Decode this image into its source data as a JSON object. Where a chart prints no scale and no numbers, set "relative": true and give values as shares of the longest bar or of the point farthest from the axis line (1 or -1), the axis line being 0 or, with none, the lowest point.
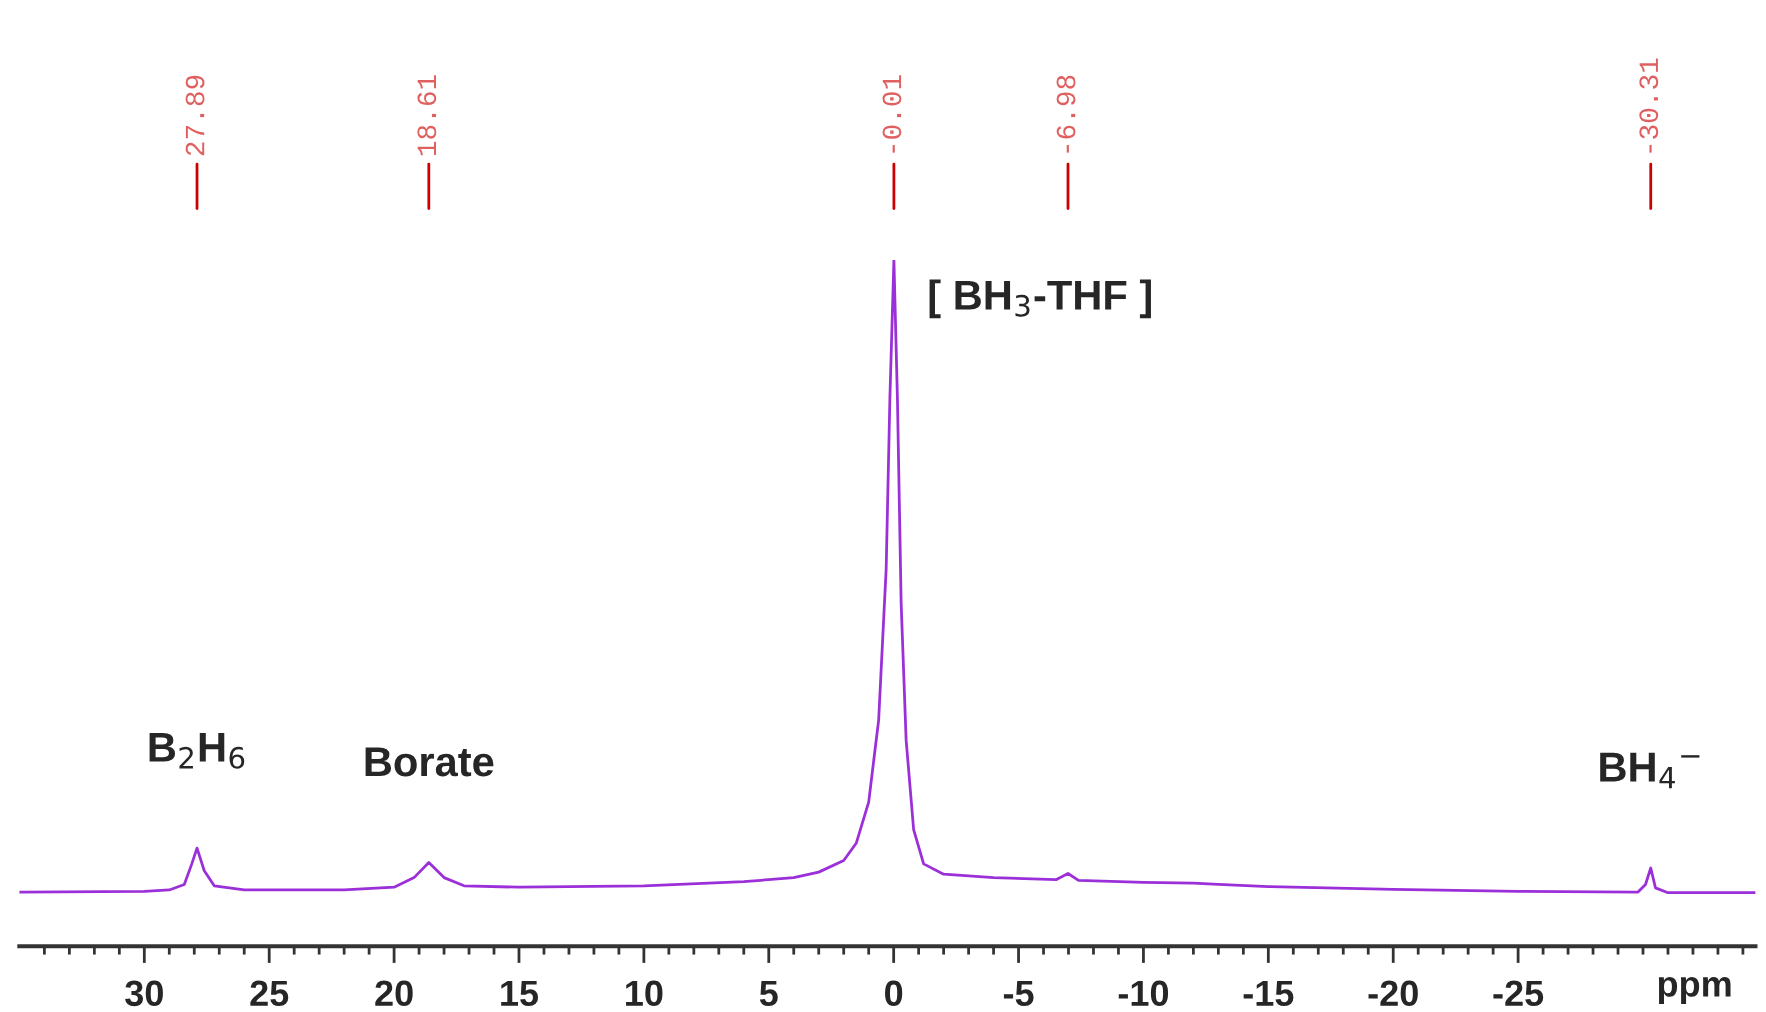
{
  "chart_data": {
    "type": "line",
    "relative": true,
    "xlabel": "ppm",
    "x": [
      35,
      30,
      29,
      28.4,
      28.1,
      27.89,
      27.6,
      27.2,
      26,
      22,
      20,
      19.2,
      18.61,
      18.0,
      17.2,
      15,
      10,
      6,
      4,
      3,
      2,
      1.5,
      1,
      0.6,
      0.3,
      0.15,
      -0.01,
      -0.15,
      -0.3,
      -0.5,
      -0.8,
      -1.2,
      -2,
      -4,
      -6.5,
      -6.98,
      -7.4,
      -10,
      -12,
      -13,
      -15,
      -20,
      -25,
      -29.8,
      -30.1,
      -30.31,
      -30.5,
      -31,
      -34.5
    ],
    "series": [
      {
        "color": "#9b30d9",
        "values": [
          0.079,
          0.08,
          0.082,
          0.09,
          0.12,
          0.143,
          0.11,
          0.088,
          0.082,
          0.082,
          0.086,
          0.1,
          0.122,
          0.1,
          0.088,
          0.086,
          0.088,
          0.094,
          0.1,
          0.108,
          0.125,
          0.15,
          0.21,
          0.33,
          0.55,
          0.8,
          1.0,
          0.8,
          0.5,
          0.3,
          0.17,
          0.12,
          0.105,
          0.1,
          0.097,
          0.106,
          0.096,
          0.093,
          0.092,
          0.09,
          0.087,
          0.083,
          0.08,
          0.079,
          0.09,
          0.114,
          0.085,
          0.078,
          0.078
        ]
      }
    ],
    "xlim": [
      35,
      -34.5
    ],
    "xticks": [
      {
        "value": 34,
        "label": null
      },
      {
        "value": 33,
        "label": null
      },
      {
        "value": 32,
        "label": null
      },
      {
        "value": 31,
        "label": null
      },
      30,
      {
        "value": 29,
        "label": null
      },
      {
        "value": 28,
        "label": null
      },
      {
        "value": 27,
        "label": null
      },
      {
        "value": 26,
        "label": null
      },
      25,
      {
        "value": 24,
        "label": null
      },
      {
        "value": 23,
        "label": null
      },
      {
        "value": 22,
        "label": null
      },
      {
        "value": 21,
        "label": null
      },
      20,
      {
        "value": 19,
        "label": null
      },
      {
        "value": 18,
        "label": null
      },
      {
        "value": 17,
        "label": null
      },
      {
        "value": 16,
        "label": null
      },
      15,
      {
        "value": 14,
        "label": null
      },
      {
        "value": 13,
        "label": null
      },
      {
        "value": 12,
        "label": null
      },
      {
        "value": 11,
        "label": null
      },
      10,
      {
        "value": 9,
        "label": null
      },
      {
        "value": 8,
        "label": null
      },
      {
        "value": 7,
        "label": null
      },
      {
        "value": 6,
        "label": null
      },
      5,
      {
        "value": 4,
        "label": null
      },
      {
        "value": 3,
        "label": null
      },
      {
        "value": 2,
        "label": null
      },
      {
        "value": 1,
        "label": null
      },
      0,
      {
        "value": -1,
        "label": null
      },
      {
        "value": -2,
        "label": null
      },
      {
        "value": -3,
        "label": null
      },
      {
        "value": -4,
        "label": null
      },
      -5,
      {
        "value": -6,
        "label": null
      },
      {
        "value": -7,
        "label": null
      },
      {
        "value": -8,
        "label": null
      },
      {
        "value": -9,
        "label": null
      },
      -10,
      {
        "value": -11,
        "label": null
      },
      {
        "value": -12,
        "label": null
      },
      {
        "value": -13,
        "label": null
      },
      {
        "value": -14,
        "label": null
      },
      -15,
      {
        "value": -16,
        "label": null
      },
      {
        "value": -17,
        "label": null
      },
      {
        "value": -18,
        "label": null
      },
      {
        "value": -19,
        "label": null
      },
      -20,
      {
        "value": -21,
        "label": null
      },
      {
        "value": -22,
        "label": null
      },
      {
        "value": -23,
        "label": null
      },
      {
        "value": -24,
        "label": null
      },
      -25,
      {
        "value": -26,
        "label": null
      },
      {
        "value": -27,
        "label": null
      },
      {
        "value": -28,
        "label": null
      },
      {
        "value": -29,
        "label": null
      },
      {
        "value": -30,
        "label": null
      },
      {
        "value": -31,
        "label": null
      },
      {
        "value": -32,
        "label": null
      },
      {
        "value": -33,
        "label": null
      },
      {
        "value": -34,
        "label": null
      }
    ],
    "annotations": [
      {
        "text": "27.89",
        "x": 27.89
      },
      {
        "text": "18.61",
        "x": 18.61
      },
      {
        "text": "-0.01",
        "x": -0.01
      },
      {
        "text": "-6.98",
        "x": -6.98
      },
      {
        "text": "-30.31",
        "x": -30.31
      },
      {
        "text": "B$_{2}$H$_{6}$",
        "x": 27.89,
        "y": 0.143
      },
      {
        "text": "Borate",
        "x": 18.61,
        "y": 0.122
      },
      {
        "text": "[ BH$_{3}$-THF ]",
        "x": -0.01,
        "y": 1.0
      },
      {
        "text": "BH$_{4}$$^{−}$",
        "x": -30.31,
        "y": 0.114
      }
    ],
    "grid": false,
    "legend": false,
    "marker": "none",
    "line_style": "solid"
  }
}
